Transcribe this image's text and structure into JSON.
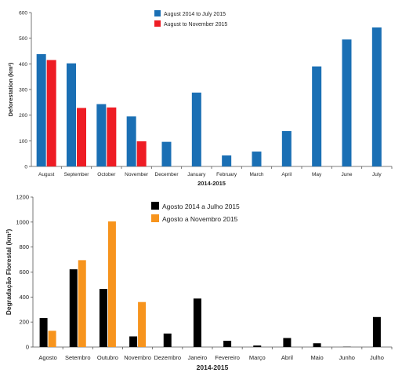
{
  "chart_data": [
    {
      "type": "bar",
      "xlabel": "2014-2015",
      "ylabel": "Deforestation (km²)",
      "ylim": [
        0,
        600
      ],
      "yticks": [
        0,
        100,
        200,
        300,
        400,
        500,
        600
      ],
      "grid": false,
      "legend_position": "top-center",
      "categories": [
        "August",
        "September",
        "October",
        "November",
        "December",
        "January",
        "February",
        "March",
        "April",
        "May",
        "June",
        "July"
      ],
      "series": [
        {
          "name": "August 2014 to July 2015",
          "color": "#1a6fb4",
          "values": [
            438,
            402,
            243,
            195,
            96,
            288,
            43,
            58,
            138,
            390,
            495,
            542
          ]
        },
        {
          "name": "August to November 2015",
          "color": "#ee1c24",
          "values": [
            415,
            228,
            230,
            98,
            null,
            null,
            null,
            null,
            null,
            null,
            null,
            null
          ]
        }
      ]
    },
    {
      "type": "bar",
      "xlabel": "2014-2015",
      "ylabel": "Degradação Florestal (km²)",
      "ylim": [
        0,
        1200
      ],
      "yticks": [
        0,
        200,
        400,
        600,
        800,
        1000,
        1200
      ],
      "grid": false,
      "legend_position": "top-center",
      "categories": [
        "Agosto",
        "Setembro",
        "Outubro",
        "Novembro",
        "Dezembro",
        "Janeiro",
        "Fevereiro",
        "Março",
        "Abril",
        "Maio",
        "Junho",
        "Julho"
      ],
      "series": [
        {
          "name": "Agosto 2014 a Julho 2015",
          "color": "#000000",
          "values": [
            232,
            622,
            465,
            85,
            108,
            388,
            50,
            12,
            72,
            30,
            2,
            240
          ]
        },
        {
          "name": "Agosto a Novembro 2015",
          "color": "#f7941d",
          "values": [
            130,
            695,
            1005,
            360,
            null,
            null,
            null,
            null,
            null,
            null,
            null,
            null
          ]
        }
      ]
    }
  ]
}
